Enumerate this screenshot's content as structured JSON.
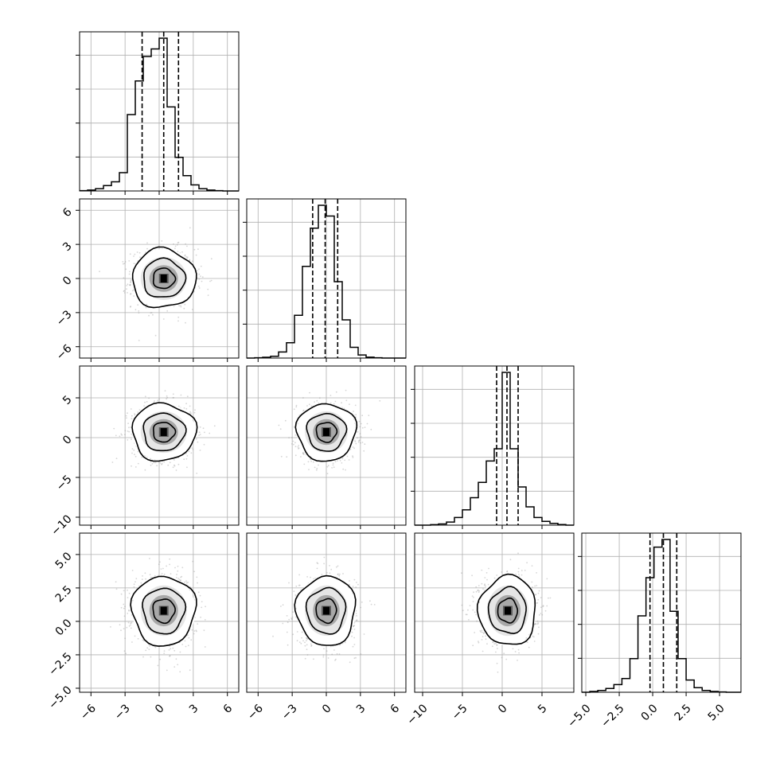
{
  "chart_data": {
    "type": "corner",
    "grid": true,
    "parameters": [
      {
        "index": 0,
        "range": [
          -7,
          7
        ],
        "ticks": [
          -6,
          -3,
          0,
          3,
          6
        ],
        "tick_labels": [
          "−6",
          "−3",
          "0",
          "3",
          "6"
        ],
        "quantiles": [
          -1.5,
          0.4,
          1.7
        ],
        "hist_edges": [
          -7,
          -6.3,
          -5.6,
          -4.9,
          -4.2,
          -3.5,
          -2.8,
          -2.1,
          -1.4,
          -0.7,
          0,
          0.7,
          1.4,
          2.1,
          2.8,
          3.5,
          4.2,
          4.9,
          5.6,
          6.3,
          7
        ],
        "hist_counts": [
          0.002,
          0.006,
          0.015,
          0.035,
          0.06,
          0.12,
          0.5,
          0.72,
          0.88,
          0.93,
          1.0,
          0.55,
          0.22,
          0.1,
          0.04,
          0.015,
          0.006,
          0.002,
          0,
          0
        ],
        "center": 0.4,
        "spread": 1.4
      },
      {
        "index": 1,
        "range": [
          -7,
          7
        ],
        "ticks": [
          -6,
          -3,
          0,
          3,
          6
        ],
        "tick_labels": [
          "−6",
          "−3",
          "0",
          "3",
          "6"
        ],
        "quantiles": [
          -1.2,
          -0.1,
          1.0
        ],
        "hist_edges": [
          -7,
          -6.3,
          -5.6,
          -4.9,
          -4.2,
          -3.5,
          -2.8,
          -2.1,
          -1.4,
          -0.7,
          0,
          0.7,
          1.4,
          2.1,
          2.8,
          3.5,
          4.2,
          4.9,
          5.6,
          6.3,
          7
        ],
        "hist_counts": [
          0,
          0.002,
          0.005,
          0.012,
          0.04,
          0.1,
          0.28,
          0.6,
          0.85,
          1.0,
          0.93,
          0.5,
          0.25,
          0.07,
          0.02,
          0.006,
          0.002,
          0,
          0,
          0
        ],
        "center": 0.0,
        "spread": 1.3
      },
      {
        "index": 2,
        "range": [
          -11,
          9
        ],
        "ticks": [
          -10,
          -5,
          0,
          5
        ],
        "tick_labels": [
          "−10",
          "−5",
          "0",
          "5"
        ],
        "quantiles": [
          -0.7,
          0.6,
          2.0
        ],
        "hist_edges": [
          -11,
          -10,
          -9,
          -8,
          -7,
          -6,
          -5,
          -4,
          -3,
          -2,
          -1,
          0,
          1,
          2,
          3,
          4,
          5,
          6,
          7,
          8,
          9
        ],
        "hist_counts": [
          0,
          0,
          0.003,
          0.008,
          0.02,
          0.05,
          0.1,
          0.18,
          0.28,
          0.42,
          0.5,
          1.0,
          0.5,
          0.25,
          0.12,
          0.05,
          0.025,
          0.012,
          0.004,
          0,
          0
        ],
        "center": 0.7,
        "spread": 1.8
      },
      {
        "index": 3,
        "range": [
          -5.3,
          6.6
        ],
        "ticks": [
          -5,
          -2.5,
          0,
          2.5,
          5
        ],
        "tick_labels": [
          "−5.0",
          "−2.5",
          "0.0",
          "2.5",
          "5.0"
        ],
        "quantiles": [
          -0.2,
          0.8,
          1.8
        ],
        "hist_edges": [
          -5.3,
          -4.7,
          -4.1,
          -3.5,
          -2.9,
          -2.3,
          -1.7,
          -1.1,
          -0.5,
          0.1,
          0.7,
          1.3,
          1.9,
          2.5,
          3.1,
          3.7,
          4.3,
          4.9,
          5.5,
          6.1,
          6.6
        ],
        "hist_counts": [
          0,
          0.005,
          0.012,
          0.025,
          0.05,
          0.09,
          0.22,
          0.5,
          0.75,
          0.95,
          1.0,
          0.53,
          0.22,
          0.08,
          0.03,
          0.012,
          0.005,
          0.002,
          0,
          0
        ],
        "center": 0.8,
        "spread": 1.3
      }
    ]
  },
  "colors": {
    "axis": "#000000",
    "grid": "#b0b0b0",
    "hist_line": "#000000",
    "quantile_line": "#000000",
    "scatter_point": "#8a8a8a",
    "contour_line": "#000000",
    "density_fill_dark": "#000000"
  }
}
